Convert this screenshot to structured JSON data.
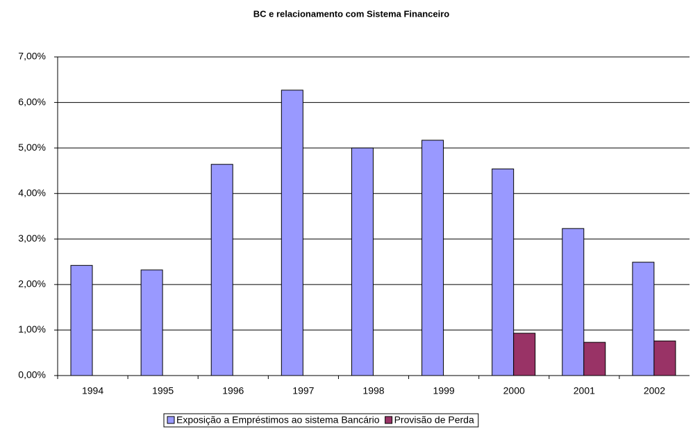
{
  "chart_data": {
    "type": "bar",
    "title": "BC e relacionamento com Sistema Financeiro",
    "categories": [
      "1994",
      "1995",
      "1996",
      "1997",
      "1998",
      "1999",
      "2000",
      "2001",
      "2002"
    ],
    "series": [
      {
        "name": "Exposição a Empréstimos ao sistema Bancário",
        "color": "#9999ff",
        "values": [
          2.42,
          2.32,
          4.64,
          6.27,
          5.0,
          5.17,
          4.54,
          3.23,
          2.49
        ]
      },
      {
        "name": "Provisão de Perda",
        "color": "#993366",
        "values": [
          null,
          null,
          null,
          null,
          null,
          null,
          0.93,
          0.73,
          0.76
        ]
      }
    ],
    "ylim": [
      0,
      7
    ],
    "yticks": [
      {
        "value": 0,
        "label": "0,00%"
      },
      {
        "value": 1,
        "label": "1,00%"
      },
      {
        "value": 2,
        "label": "2,00%"
      },
      {
        "value": 3,
        "label": "3,00%"
      },
      {
        "value": 4,
        "label": "4,00%"
      },
      {
        "value": 5,
        "label": "5,00%"
      },
      {
        "value": 6,
        "label": "6,00%"
      },
      {
        "value": 7,
        "label": "7,00%"
      }
    ],
    "grid": true,
    "legend": "bottom"
  }
}
